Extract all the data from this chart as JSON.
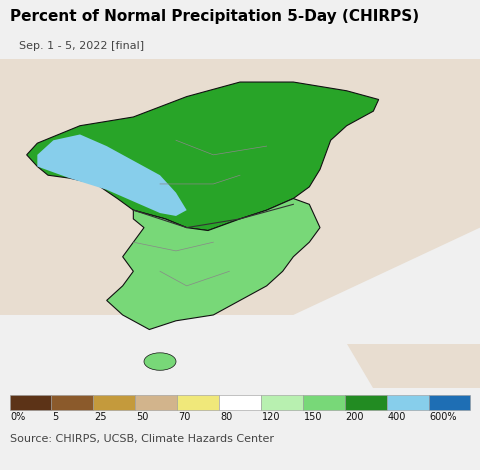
{
  "title": "Percent of Normal Precipitation 5-Day (CHIRPS)",
  "subtitle": "Sep. 1 - 5, 2022 [final]",
  "source_text": "Source: CHIRPS, UCSB, Climate Hazards Center",
  "colorbar_labels": [
    "0%",
    "5",
    "25",
    "50",
    "70",
    "80",
    "120",
    "150",
    "200",
    "400",
    "600%"
  ],
  "colorbar_values": [
    0,
    5,
    25,
    50,
    70,
    80,
    120,
    150,
    200,
    400,
    600
  ],
  "colorbar_colors": [
    "#5c3317",
    "#8b5a2b",
    "#c49a3c",
    "#d2b48c",
    "#f0e87a",
    "#ffffff",
    "#b8f0b0",
    "#78d878",
    "#228b22",
    "#87ceeb",
    "#1e6eb4"
  ],
  "ocean_color": "#aadcec",
  "land_outside_color": "#e8ddd0",
  "background_color": "#f0f0f0",
  "title_fontsize": 11,
  "subtitle_fontsize": 8,
  "source_fontsize": 8,
  "figsize": [
    4.8,
    4.7
  ],
  "dpi": 100,
  "map_extent": [
    123.5,
    132.5,
    32.5,
    43.8
  ]
}
